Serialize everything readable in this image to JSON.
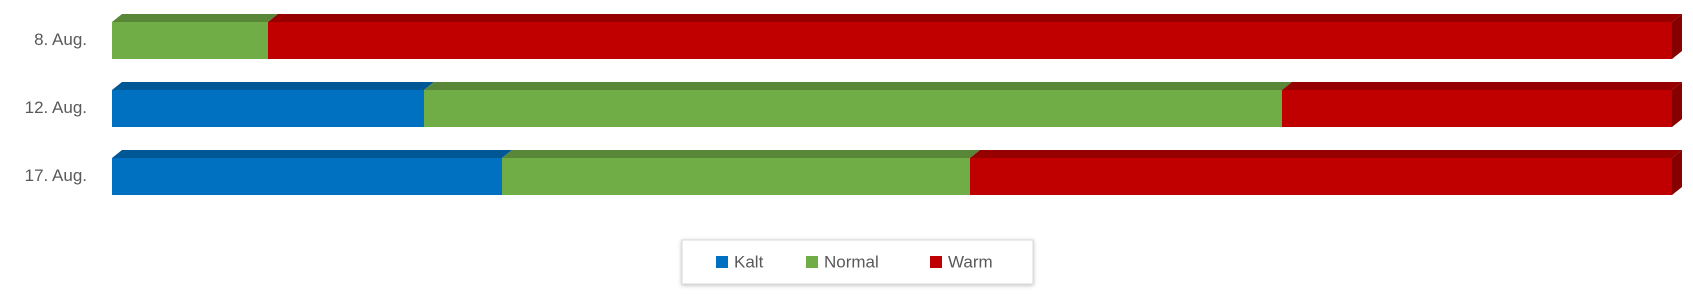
{
  "chart_data": {
    "type": "stacked-bar-100",
    "categories": [
      "8. Aug.",
      "12. Aug.",
      "17. Aug."
    ],
    "series": [
      {
        "name": "Kalt",
        "color": "#0070c0",
        "values": [
          0,
          20,
          25
        ]
      },
      {
        "name": "Normal",
        "color": "#70ad47",
        "values": [
          10,
          55,
          30
        ]
      },
      {
        "name": "Warm",
        "color": "#c00000",
        "values": [
          90,
          25,
          45
        ]
      }
    ]
  }
}
